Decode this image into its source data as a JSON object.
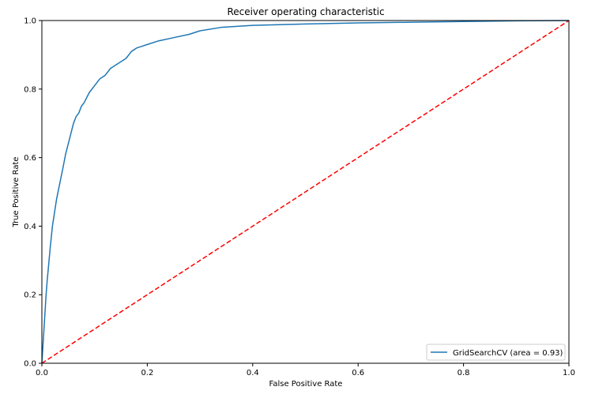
{
  "chart_data": {
    "type": "line",
    "title": "Receiver operating characteristic",
    "xlabel": "False Positive Rate",
    "ylabel": "True Positive Rate",
    "xlim": [
      0.0,
      1.0
    ],
    "ylim": [
      0.0,
      1.0
    ],
    "xticks": [
      "0.0",
      "0.2",
      "0.4",
      "0.6",
      "0.8",
      "1.0"
    ],
    "yticks": [
      "0.0",
      "0.2",
      "0.4",
      "0.6",
      "0.8",
      "1.0"
    ],
    "grid": false,
    "legend_position": "lower-right",
    "series": [
      {
        "name": "GridSearchCV (area = 0.93)",
        "color": "#1f77b4",
        "style": "solid",
        "x": [
          0.0,
          0.002,
          0.004,
          0.006,
          0.008,
          0.01,
          0.013,
          0.016,
          0.02,
          0.024,
          0.028,
          0.032,
          0.036,
          0.04,
          0.045,
          0.05,
          0.055,
          0.06,
          0.065,
          0.07,
          0.075,
          0.08,
          0.09,
          0.1,
          0.11,
          0.12,
          0.13,
          0.14,
          0.15,
          0.16,
          0.17,
          0.18,
          0.19,
          0.2,
          0.22,
          0.25,
          0.28,
          0.3,
          0.34,
          0.4,
          0.5,
          0.6,
          0.7,
          0.8,
          0.9,
          1.0
        ],
        "y": [
          0.0,
          0.05,
          0.1,
          0.15,
          0.2,
          0.24,
          0.29,
          0.34,
          0.4,
          0.44,
          0.48,
          0.51,
          0.54,
          0.57,
          0.61,
          0.64,
          0.67,
          0.7,
          0.72,
          0.73,
          0.75,
          0.76,
          0.79,
          0.81,
          0.83,
          0.84,
          0.86,
          0.87,
          0.88,
          0.89,
          0.91,
          0.92,
          0.925,
          0.93,
          0.94,
          0.95,
          0.96,
          0.97,
          0.98,
          0.986,
          0.99,
          0.993,
          0.995,
          0.997,
          0.999,
          1.0
        ]
      },
      {
        "name": "",
        "color": "#ff0000",
        "style": "dashed",
        "x": [
          0.0,
          1.0
        ],
        "y": [
          0.0,
          1.0
        ]
      }
    ]
  }
}
